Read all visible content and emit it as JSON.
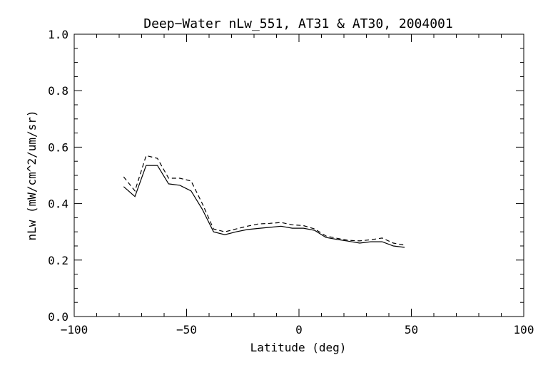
{
  "chart_data": {
    "type": "line",
    "title": "Deep−Water nLw_551, AT31 & AT30, 2004001",
    "xlabel": "Latitude (deg)",
    "ylabel": "nLw (mW/cm^2/um/sr)",
    "xlim": [
      -100,
      100
    ],
    "ylim": [
      0.0,
      1.0
    ],
    "x_ticks": [
      -100,
      -50,
      0,
      50,
      100
    ],
    "x_tick_labels": [
      "−100",
      "−50",
      "0",
      "50",
      "100"
    ],
    "y_ticks": [
      0.0,
      0.2,
      0.4,
      0.6,
      0.8,
      1.0
    ],
    "y_tick_labels": [
      "0.0",
      "0.2",
      "0.4",
      "0.6",
      "0.8",
      "1.0"
    ],
    "grid": false,
    "series": [
      {
        "style": "solid",
        "x": [
          -78,
          -73,
          -68,
          -63,
          -58,
          -53,
          -48,
          -43,
          -38,
          -33,
          -28,
          -23,
          -18,
          -13,
          -8,
          -3,
          2,
          7,
          12,
          17,
          22,
          27,
          32,
          37,
          42,
          47
        ],
        "y": [
          0.46,
          0.425,
          0.535,
          0.535,
          0.47,
          0.465,
          0.445,
          0.38,
          0.3,
          0.29,
          0.3,
          0.308,
          0.312,
          0.316,
          0.32,
          0.313,
          0.313,
          0.305,
          0.28,
          0.273,
          0.267,
          0.26,
          0.265,
          0.265,
          0.25,
          0.245
        ]
      },
      {
        "style": "dashed",
        "x": [
          -78,
          -73,
          -68,
          -63,
          -58,
          -53,
          -48,
          -43,
          -38,
          -33,
          -28,
          -23,
          -18,
          -13,
          -8,
          -3,
          2,
          7,
          12,
          17,
          22,
          27,
          32,
          37,
          42,
          47
        ],
        "y": [
          0.495,
          0.445,
          0.57,
          0.56,
          0.49,
          0.49,
          0.48,
          0.4,
          0.31,
          0.3,
          0.31,
          0.32,
          0.328,
          0.33,
          0.333,
          0.325,
          0.322,
          0.31,
          0.285,
          0.277,
          0.27,
          0.268,
          0.272,
          0.278,
          0.26,
          0.253
        ]
      }
    ]
  }
}
